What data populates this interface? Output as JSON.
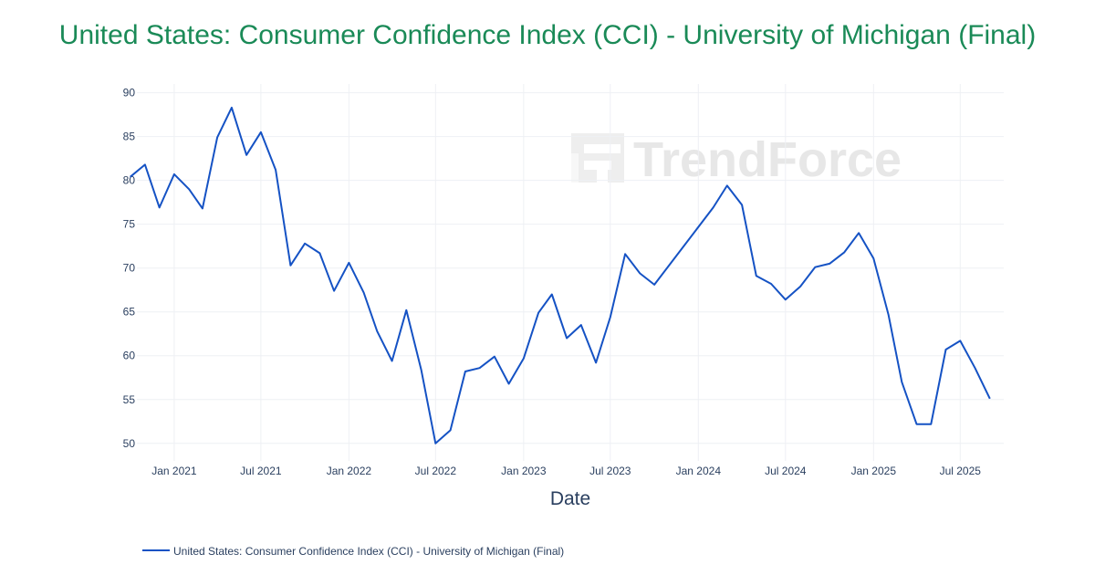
{
  "title": "United States: Consumer Confidence Index (CCI) - University of Michigan (Final)",
  "watermark": "TrendForce",
  "colors": {
    "title": "#1a8a57",
    "line": "#1552c4",
    "grid": "#eef0f4",
    "text": "#2a3f5f",
    "watermark": "#e7e7e7"
  },
  "chart_data": {
    "type": "line",
    "title": "United States: Consumer Confidence Index (CCI) - University of Michigan (Final)",
    "xlabel": "Date",
    "ylabel": "",
    "ylim": [
      48,
      91
    ],
    "xlim": [
      "2020-10-15",
      "2025-09-30"
    ],
    "y_ticks": [
      50,
      55,
      60,
      65,
      70,
      75,
      80,
      85,
      90
    ],
    "x_ticks": [
      {
        "date": "2021-01-01",
        "label": "Jan 2021"
      },
      {
        "date": "2021-07-01",
        "label": "Jul 2021"
      },
      {
        "date": "2022-01-01",
        "label": "Jan 2022"
      },
      {
        "date": "2022-07-01",
        "label": "Jul 2022"
      },
      {
        "date": "2023-01-01",
        "label": "Jan 2023"
      },
      {
        "date": "2023-07-01",
        "label": "Jul 2023"
      },
      {
        "date": "2024-01-01",
        "label": "Jan 2024"
      },
      {
        "date": "2024-07-01",
        "label": "Jul 2024"
      },
      {
        "date": "2025-01-01",
        "label": "Jan 2025"
      },
      {
        "date": "2025-07-01",
        "label": "Jul 2025"
      }
    ],
    "grid": true,
    "legend_position": "bottom-left",
    "series": [
      {
        "name": "United States: Consumer Confidence Index (CCI) - University of Michigan (Final)",
        "color": "#1552c4",
        "points": [
          [
            "2020-10-01",
            80.4
          ],
          [
            "2020-11-01",
            81.8
          ],
          [
            "2020-12-01",
            76.9
          ],
          [
            "2021-01-01",
            80.7
          ],
          [
            "2021-02-01",
            79.0
          ],
          [
            "2021-03-01",
            76.8
          ],
          [
            "2021-04-01",
            84.9
          ],
          [
            "2021-05-01",
            88.3
          ],
          [
            "2021-06-01",
            82.9
          ],
          [
            "2021-07-01",
            85.5
          ],
          [
            "2021-08-01",
            81.2
          ],
          [
            "2021-09-01",
            70.3
          ],
          [
            "2021-10-01",
            72.8
          ],
          [
            "2021-11-01",
            71.7
          ],
          [
            "2021-12-01",
            67.4
          ],
          [
            "2022-01-01",
            70.6
          ],
          [
            "2022-02-01",
            67.2
          ],
          [
            "2022-03-01",
            62.8
          ],
          [
            "2022-04-01",
            59.4
          ],
          [
            "2022-05-01",
            65.2
          ],
          [
            "2022-06-01",
            58.4
          ],
          [
            "2022-07-01",
            50.0
          ],
          [
            "2022-08-01",
            51.5
          ],
          [
            "2022-09-01",
            58.2
          ],
          [
            "2022-10-01",
            58.6
          ],
          [
            "2022-11-01",
            59.9
          ],
          [
            "2022-12-01",
            56.8
          ],
          [
            "2023-01-01",
            59.7
          ],
          [
            "2023-02-01",
            64.9
          ],
          [
            "2023-03-01",
            67.0
          ],
          [
            "2023-04-01",
            62.0
          ],
          [
            "2023-05-01",
            63.5
          ],
          [
            "2023-06-01",
            59.2
          ],
          [
            "2023-07-01",
            64.4
          ],
          [
            "2023-08-01",
            71.6
          ],
          [
            "2023-09-01",
            69.4
          ],
          [
            "2023-10-01",
            68.1
          ],
          [
            "2024-02-01",
            76.9
          ],
          [
            "2024-03-01",
            79.4
          ],
          [
            "2024-04-01",
            77.2
          ],
          [
            "2024-05-01",
            69.1
          ],
          [
            "2024-06-01",
            68.2
          ],
          [
            "2024-07-01",
            66.4
          ],
          [
            "2024-08-01",
            67.9
          ],
          [
            "2024-09-01",
            70.1
          ],
          [
            "2024-10-01",
            70.5
          ],
          [
            "2024-11-01",
            71.8
          ],
          [
            "2024-12-01",
            74.0
          ],
          [
            "2025-01-01",
            71.1
          ],
          [
            "2025-02-01",
            64.7
          ],
          [
            "2025-03-01",
            57.0
          ],
          [
            "2025-04-01",
            52.2
          ],
          [
            "2025-05-01",
            52.2
          ],
          [
            "2025-06-01",
            60.7
          ],
          [
            "2025-07-01",
            61.7
          ],
          [
            "2025-08-01",
            58.6
          ],
          [
            "2025-09-01",
            55.1
          ]
        ]
      }
    ]
  }
}
